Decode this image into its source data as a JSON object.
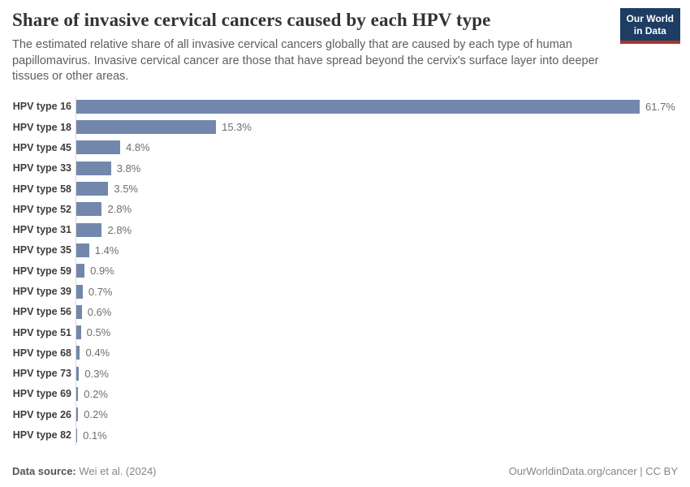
{
  "header": {
    "title": "Share of invasive cervical cancers caused by each HPV type",
    "subtitle": "The estimated relative share of all invasive cervical cancers globally that are caused by each type of human papillomavirus. Invasive cervical cancer are those that have spread beyond the cervix's surface layer into deeper tissues or other areas.",
    "logo": {
      "line1": "Our World",
      "line2": "in Data"
    }
  },
  "chart_data": {
    "type": "bar",
    "orientation": "horizontal",
    "title": "Share of invasive cervical cancers caused by each HPV type",
    "categories": [
      "HPV type 16",
      "HPV type 18",
      "HPV type 45",
      "HPV type 33",
      "HPV type 58",
      "HPV type 52",
      "HPV type 31",
      "HPV type 35",
      "HPV type 59",
      "HPV type 39",
      "HPV type 56",
      "HPV type 51",
      "HPV type 68",
      "HPV type 73",
      "HPV type 69",
      "HPV type 26",
      "HPV type 82"
    ],
    "values": [
      61.7,
      15.3,
      4.8,
      3.8,
      3.5,
      2.8,
      2.8,
      1.4,
      0.9,
      0.7,
      0.6,
      0.5,
      0.4,
      0.3,
      0.2,
      0.2,
      0.1
    ],
    "value_labels": [
      "61.7%",
      "15.3%",
      "4.8%",
      "3.8%",
      "3.5%",
      "2.8%",
      "2.8%",
      "1.4%",
      "0.9%",
      "0.7%",
      "0.6%",
      "0.5%",
      "0.4%",
      "0.3%",
      "0.2%",
      "0.2%",
      "0.1%"
    ],
    "unit": "%",
    "xlim": [
      0,
      61.7
    ],
    "grid": false,
    "legend": "none",
    "bar_color": "#7287ab",
    "axis_line_color": "#d9d9d9"
  },
  "footer": {
    "datasource_label": "Data source:",
    "datasource_value": "Wei et al. (2024)",
    "attribution": "OurWorldinData.org/cancer | CC BY"
  },
  "colors": {
    "logo_background": "#1d3d63",
    "logo_stripe": "#a8352a",
    "title_text": "#333333",
    "subtitle_text": "#5e5e5e",
    "category_label_text": "#3d3d3d",
    "value_label_text": "#6e6e6e"
  }
}
